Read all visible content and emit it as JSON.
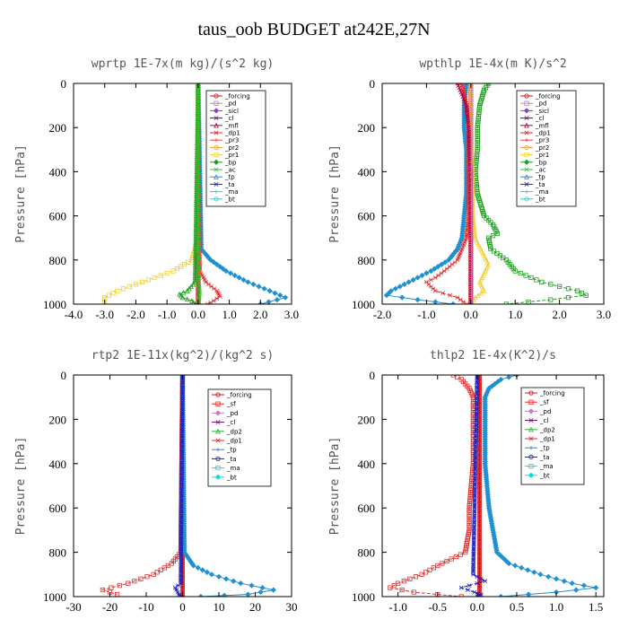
{
  "title": "taus_oob  BUDGET at242E,27N",
  "colors": {
    "_forcing": "#d01414",
    "_pd": "#c080c0",
    "_sicl": "#9040c0",
    "_cl": "#700070",
    "_mfl": "#b00040",
    "_dp1": "#e03030",
    "_pr3": "#f04040",
    "_pr2": "#f0a040",
    "_pr1": "#f0d040",
    "_bp": "#20a020",
    "_ac": "#30c030",
    "_tp": "#2090d0",
    "_ta": "#2020c0",
    "_ma": "#40c0e0",
    "_bt": "#00e0e0",
    "_sf": "#ff2020",
    "_dp2": "#30b030"
  },
  "chart_data": [
    {
      "type": "line",
      "title": "wprtp  1E-7x(m kg)/(s^2 kg)",
      "xlabel": "",
      "ylabel": "Pressure [hPa]",
      "xlim": [
        -4.0,
        3.0
      ],
      "ylim": [
        1000,
        0
      ],
      "xticks": [
        -4.0,
        -3.0,
        -2.0,
        -1.0,
        0.0,
        1.0,
        2.0,
        3.0
      ],
      "xtick_labels": [
        "-4.0",
        "-3.0",
        "-2.0",
        "-1.0",
        "0.0",
        "1.0",
        "2.0",
        "3.0"
      ],
      "yticks": [
        0,
        200,
        400,
        600,
        800,
        1000
      ],
      "ytick_labels": [
        "0",
        "200",
        "400",
        "600",
        "800",
        "1000"
      ],
      "legend_position": "top-right",
      "legend": [
        "_forcing",
        "_pd",
        "_sicl",
        "_cl",
        "_mfl",
        "_dp1",
        "_pr3",
        "_pr2",
        "_pr1",
        "_bp",
        "_ac",
        "_tp",
        "_ta",
        "_ma",
        "_bt"
      ],
      "series": [
        {
          "name": "_forcing",
          "p": [
            0,
            1000
          ],
          "x": [
            0,
            0
          ]
        },
        {
          "name": "_pr1",
          "p": [
            0,
            700,
            800,
            850,
            900,
            940,
            970,
            990
          ],
          "x": [
            0,
            0,
            -0.2,
            -0.8,
            -1.8,
            -2.6,
            -3.0,
            -3.0
          ]
        },
        {
          "name": "_tp",
          "p": [
            0,
            750,
            800,
            850,
            900,
            940,
            970,
            1000
          ],
          "x": [
            0,
            0.1,
            0.4,
            0.9,
            1.6,
            2.3,
            2.8,
            2.0
          ]
        },
        {
          "name": "_dp1",
          "p": [
            0,
            850,
            900,
            940,
            965,
            985,
            1000
          ],
          "x": [
            0,
            0.05,
            0.25,
            0.6,
            0.7,
            0.5,
            0.3
          ]
        },
        {
          "name": "_bp",
          "p": [
            0,
            900,
            940,
            955,
            970,
            985,
            1000
          ],
          "x": [
            0,
            -0.1,
            -0.35,
            -0.6,
            -0.5,
            -0.2,
            -0.1
          ]
        },
        {
          "name": "_ac",
          "p": [
            0,
            900,
            950,
            1000
          ],
          "x": [
            0,
            0.02,
            0.05,
            0.02
          ]
        }
      ]
    },
    {
      "type": "line",
      "title": "wpthlp  1E-4x(m K)/s^2",
      "xlabel": "",
      "ylabel": "Pressure [hPa]",
      "xlim": [
        -2.0,
        3.0
      ],
      "ylim": [
        1000,
        0
      ],
      "xticks": [
        -2.0,
        -1.0,
        0.0,
        1.0,
        2.0,
        3.0
      ],
      "xtick_labels": [
        "-2.0",
        "-1.0",
        "0.0",
        "1.0",
        "2.0",
        "3.0"
      ],
      "yticks": [
        0,
        200,
        400,
        600,
        800,
        1000
      ],
      "ytick_labels": [
        "0",
        "200",
        "400",
        "600",
        "800",
        "1000"
      ],
      "legend_position": "top-right",
      "legend": [
        "_forcing",
        "_pd",
        "_sicl",
        "_cl",
        "_mfl",
        "_dp1",
        "_pr3",
        "_pr2",
        "_pr1",
        "_bp",
        "_ac",
        "_tp",
        "_ta",
        "_ma",
        "_bt"
      ],
      "series": [
        {
          "name": "_forcing",
          "p": [
            0,
            1000
          ],
          "x": [
            0,
            0
          ]
        },
        {
          "name": "_bp",
          "p": [
            0,
            30,
            100,
            200,
            300,
            400,
            500,
            600,
            640,
            680,
            700,
            750,
            800,
            850,
            900,
            940,
            960,
            980,
            1000
          ],
          "x": [
            0.4,
            0.3,
            0.2,
            0.15,
            0.15,
            0.1,
            0.15,
            0.3,
            0.5,
            0.6,
            0.4,
            0.45,
            0.8,
            1.0,
            1.6,
            2.4,
            2.6,
            1.8,
            0.8
          ]
        },
        {
          "name": "_tp",
          "p": [
            0,
            100,
            200,
            300,
            400,
            500,
            600,
            700,
            750,
            800,
            850,
            900,
            940,
            960,
            980,
            1000
          ],
          "x": [
            -0.1,
            -0.15,
            -0.15,
            -0.1,
            -0.1,
            -0.1,
            -0.15,
            -0.2,
            -0.3,
            -0.5,
            -0.9,
            -1.4,
            -1.8,
            -1.9,
            -1.2,
            -0.4
          ]
        },
        {
          "name": "_dp1",
          "p": [
            0,
            100,
            200,
            400,
            600,
            700,
            800,
            850,
            880,
            900,
            940,
            970,
            1000
          ],
          "x": [
            -0.2,
            -0.1,
            -0.05,
            -0.05,
            -0.05,
            -0.1,
            -0.3,
            -0.6,
            -0.8,
            -1.0,
            -0.8,
            -0.3,
            -0.1
          ]
        },
        {
          "name": "_pr1",
          "p": [
            0,
            600,
            700,
            780,
            820,
            860,
            900,
            940,
            970,
            1000
          ],
          "x": [
            0,
            0.05,
            0.1,
            0.3,
            0.4,
            0.3,
            0.2,
            0.3,
            0.1,
            0
          ]
        },
        {
          "name": "_mfl",
          "p": [
            0,
            50,
            100,
            200,
            400,
            1000
          ],
          "x": [
            -0.3,
            -0.2,
            -0.1,
            -0.05,
            0,
            0
          ]
        },
        {
          "name": "_pd",
          "p": [
            0,
            1000
          ],
          "x": [
            0.02,
            0.02
          ]
        }
      ]
    },
    {
      "type": "line",
      "title": "rtp2  1E-11x(kg^2)/(kg^2 s)",
      "xlabel": "",
      "ylabel": "Pressure [hPa]",
      "xlim": [
        -30,
        30
      ],
      "ylim": [
        1000,
        0
      ],
      "xticks": [
        -30,
        -20,
        -10,
        0,
        10,
        20,
        30
      ],
      "xtick_labels": [
        "-30",
        "-20",
        "-10",
        "0",
        "10",
        "20",
        "30"
      ],
      "yticks": [
        0,
        200,
        400,
        600,
        800,
        1000
      ],
      "ytick_labels": [
        "0",
        "200",
        "400",
        "600",
        "800",
        "1000"
      ],
      "legend_position": "top-right",
      "legend": [
        "_forcing",
        "_sf",
        "_pd",
        "_cl",
        "_dp2",
        "_dp1",
        "_tp",
        "_ta",
        "_ma",
        "_bt"
      ],
      "series": [
        {
          "name": "_forcing",
          "p": [
            0,
            1000
          ],
          "x": [
            0,
            0
          ]
        },
        {
          "name": "_dp1",
          "p": [
            0,
            800,
            850,
            900,
            940,
            970,
            990
          ],
          "x": [
            0,
            -0.5,
            -3,
            -8,
            -15,
            -22,
            -18
          ]
        },
        {
          "name": "_tp",
          "p": [
            0,
            800,
            860,
            900,
            940,
            970,
            990,
            1000
          ],
          "x": [
            0,
            0.5,
            3,
            8,
            16,
            25,
            18,
            5
          ]
        },
        {
          "name": "_ta",
          "p": [
            0,
            940,
            960,
            990,
            1000
          ],
          "x": [
            0,
            -0.5,
            -2,
            -1,
            -0.5
          ]
        }
      ]
    },
    {
      "type": "line",
      "title": "thlp2  1E-4x(K^2)/s",
      "xlabel": "",
      "ylabel": "Pressure [hPa]",
      "xlim": [
        -1.2,
        1.6
      ],
      "ylim": [
        1000,
        0
      ],
      "xticks": [
        -1.0,
        -0.5,
        0.0,
        0.5,
        1.0,
        1.5
      ],
      "xtick_labels": [
        "-1.0",
        "-0.5",
        "0.0",
        "0.5",
        "1.0",
        "1.5"
      ],
      "yticks": [
        0,
        200,
        400,
        600,
        800,
        1000
      ],
      "ytick_labels": [
        "0",
        "200",
        "400",
        "600",
        "800",
        "1000"
      ],
      "legend_position": "top-right",
      "legend": [
        "_forcing",
        "_sf",
        "_pd",
        "_cl",
        "_dp2",
        "_dp1",
        "_tp",
        "_ta",
        "_ma",
        "_bt"
      ],
      "series": [
        {
          "name": "_forcing",
          "p": [
            0,
            1000
          ],
          "x": [
            0.03,
            0.03
          ]
        },
        {
          "name": "_dp1",
          "p": [
            0,
            20,
            60,
            100,
            200,
            400,
            600,
            700,
            800,
            860,
            900,
            940,
            960,
            980,
            1000
          ],
          "x": [
            -0.3,
            -0.2,
            -0.1,
            -0.05,
            -0.05,
            -0.05,
            -0.1,
            -0.1,
            -0.15,
            -0.5,
            -0.7,
            -1.0,
            -1.1,
            -0.8,
            -0.2
          ]
        },
        {
          "name": "_tp",
          "p": [
            0,
            20,
            60,
            100,
            200,
            400,
            600,
            700,
            800,
            850,
            900,
            940,
            960,
            980,
            1000
          ],
          "x": [
            0.5,
            0.3,
            0.15,
            0.1,
            0.1,
            0.1,
            0.15,
            0.2,
            0.25,
            0.4,
            0.8,
            1.2,
            1.5,
            1.0,
            0.3
          ]
        },
        {
          "name": "_ta",
          "p": [
            0,
            900,
            930,
            960,
            990,
            1000
          ],
          "x": [
            0,
            -0.05,
            0.1,
            -0.2,
            0.05,
            0
          ]
        }
      ]
    }
  ]
}
